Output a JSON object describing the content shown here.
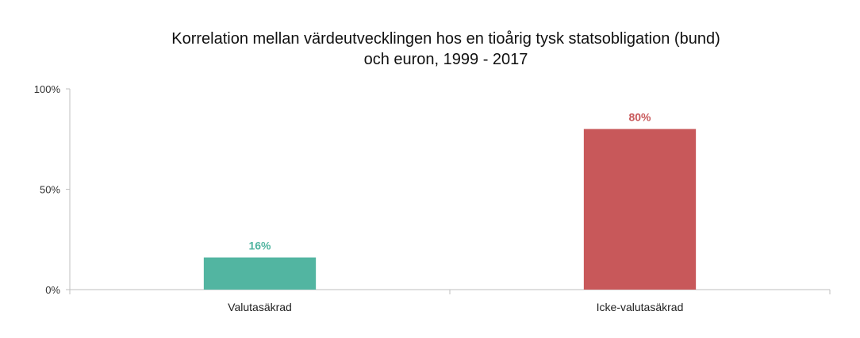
{
  "chart_data": {
    "type": "bar",
    "title_lines": [
      "Korrelation mellan värdeutvecklingen hos en tioårig tysk statsobligation (bund)",
      "och euron, 1999 - 2017"
    ],
    "categories": [
      "Valutasäkrad",
      "Icke-valutasäkrad"
    ],
    "values": [
      16,
      80
    ],
    "data_labels": [
      "16%",
      "80%"
    ],
    "colors": [
      "#52B5A1",
      "#C8585A"
    ],
    "ylim": [
      0,
      100
    ],
    "yticks": [
      0,
      50,
      100
    ],
    "ytick_labels": [
      "0%",
      "50%",
      "100%"
    ],
    "xlabel": "",
    "ylabel": "",
    "grid": false,
    "legend": "none"
  }
}
